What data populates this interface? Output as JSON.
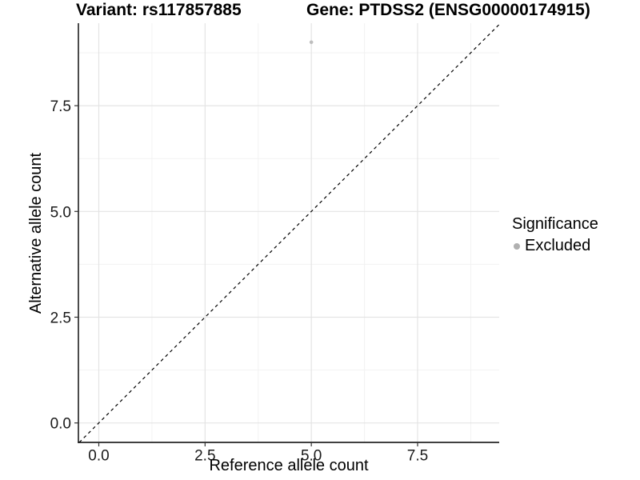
{
  "chart_data": {
    "type": "scatter",
    "titles": {
      "left": "Variant: rs117857885",
      "right": "Gene: PTDSS2 (ENSG00000174915)"
    },
    "xlabel": "Reference allele count",
    "ylabel": "Alternative allele count",
    "xlim": [
      -0.48,
      9.42
    ],
    "ylim": [
      -0.46,
      9.45
    ],
    "x_ticks": {
      "values": [
        0,
        2.5,
        5,
        7.5
      ],
      "labels": [
        "0.0",
        "2.5",
        "5.0",
        "7.5"
      ]
    },
    "y_ticks": {
      "values": [
        0,
        2.5,
        5,
        7.5
      ],
      "labels": [
        "0.0",
        "2.5",
        "5.0",
        "7.5"
      ]
    },
    "minor_grid_values": [
      1.25,
      3.75,
      6.25,
      8.75
    ],
    "grid": "major and minor gridlines, light gray on white panel",
    "reference_line": {
      "kind": "identity y = x",
      "style": "dashed",
      "color": "#000000"
    },
    "series": [
      {
        "name": "Excluded",
        "color": "#bebebe",
        "points": [
          {
            "x": 5,
            "y": 9
          }
        ]
      }
    ],
    "legend": {
      "position": "right",
      "title": "Significance",
      "entries": [
        {
          "label": "Excluded",
          "color": "#b0b0b0"
        }
      ]
    }
  },
  "style": {
    "background": "#ffffff",
    "grid_major": "#e4e4e4",
    "grid_minor": "#f2f2f2",
    "axis_color": "#000000",
    "tick_color": "#333333",
    "tick_label_color": "#1a1a1a",
    "point_color": "#bebebe"
  }
}
